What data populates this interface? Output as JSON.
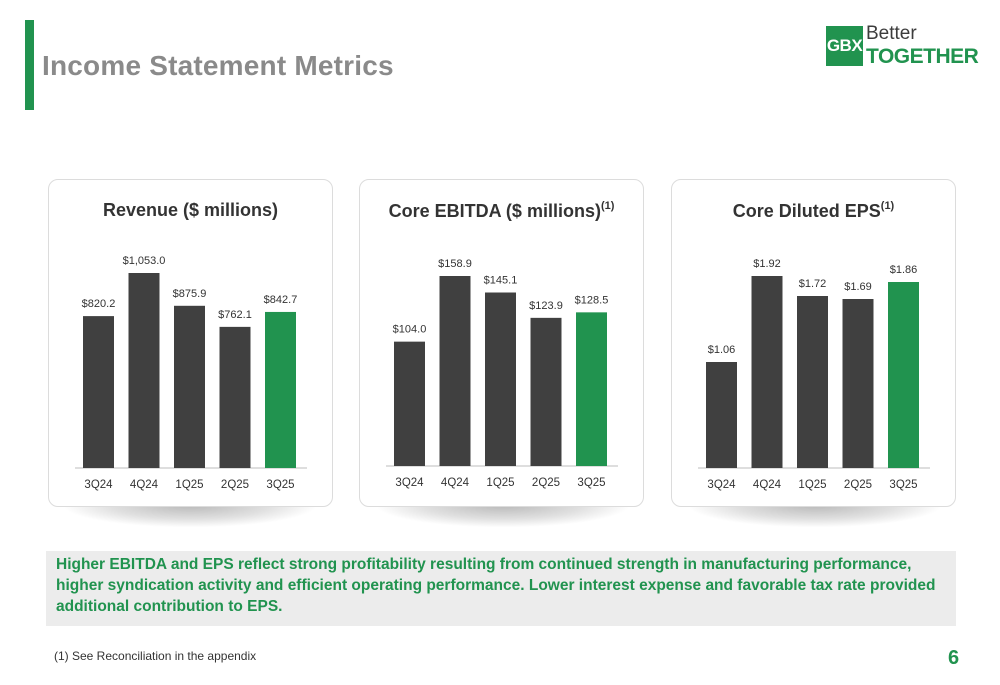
{
  "page": {
    "title": "Income Statement Metrics",
    "summary": "Higher EBITDA and EPS reflect strong profitability resulting from continued strength in manufacturing performance, higher syndication activity and efficient operating performance. Lower interest expense and favorable tax rate provided additional contribution to EPS.",
    "footnote": "(1) See Reconciliation in the appendix",
    "page_number": "6"
  },
  "logo": {
    "mark": "GBX",
    "line1": "Better",
    "line2": "TOGETHER"
  },
  "colors": {
    "accent": "#21934f",
    "bar_dark": "#404040",
    "bar_highlight": "#21934f"
  },
  "chart_data": [
    {
      "type": "bar",
      "title": "Revenue ($ millions)",
      "title_sup": "",
      "categories": [
        "3Q24",
        "4Q24",
        "1Q25",
        "2Q25",
        "3Q25"
      ],
      "values": [
        820.2,
        1053.0,
        875.9,
        762.1,
        842.7
      ],
      "labels": [
        "$820.2",
        "$1,053.0",
        "$875.9",
        "$762.1",
        "$842.7"
      ],
      "highlight_index": 4,
      "ylim": [
        0,
        1053.0
      ]
    },
    {
      "type": "bar",
      "title": "Core EBITDA ($ millions)",
      "title_sup": "(1)",
      "categories": [
        "3Q24",
        "4Q24",
        "1Q25",
        "2Q25",
        "3Q25"
      ],
      "values": [
        104.0,
        158.9,
        145.1,
        123.9,
        128.5
      ],
      "labels": [
        "$104.0",
        "$158.9",
        "$145.1",
        "$123.9",
        "$128.5"
      ],
      "highlight_index": 4,
      "ylim": [
        0,
        158.9
      ]
    },
    {
      "type": "bar",
      "title": "Core Diluted EPS",
      "title_sup": "(1)",
      "categories": [
        "3Q24",
        "4Q24",
        "1Q25",
        "2Q25",
        "3Q25"
      ],
      "values": [
        1.06,
        1.92,
        1.72,
        1.69,
        1.86
      ],
      "labels": [
        "$1.06",
        "$1.92",
        "$1.72",
        "$1.69",
        "$1.86"
      ],
      "highlight_index": 4,
      "ylim": [
        0,
        1.92
      ]
    }
  ]
}
